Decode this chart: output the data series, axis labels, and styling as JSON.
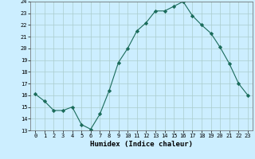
{
  "x": [
    0,
    1,
    2,
    3,
    4,
    5,
    6,
    7,
    8,
    9,
    10,
    11,
    12,
    13,
    14,
    15,
    16,
    17,
    18,
    19,
    20,
    21,
    22,
    23
  ],
  "y": [
    16.1,
    15.5,
    14.7,
    14.7,
    15.0,
    13.5,
    13.1,
    14.4,
    16.4,
    18.8,
    20.0,
    21.5,
    22.2,
    23.2,
    23.2,
    23.6,
    24.0,
    22.8,
    22.0,
    21.3,
    20.1,
    18.7,
    17.0,
    16.0
  ],
  "xlabel": "Humidex (Indice chaleur)",
  "ylim": [
    13,
    24
  ],
  "xlim": [
    -0.5,
    23.5
  ],
  "yticks": [
    13,
    14,
    15,
    16,
    17,
    18,
    19,
    20,
    21,
    22,
    23,
    24
  ],
  "xticks": [
    0,
    1,
    2,
    3,
    4,
    5,
    6,
    7,
    8,
    9,
    10,
    11,
    12,
    13,
    14,
    15,
    16,
    17,
    18,
    19,
    20,
    21,
    22,
    23
  ],
  "line_color": "#1a6b5a",
  "marker": "D",
  "markersize": 2.2,
  "bg_color": "#cceeff",
  "grid_color": "#aacccc",
  "tick_fontsize": 5.0,
  "xlabel_fontsize": 6.5
}
